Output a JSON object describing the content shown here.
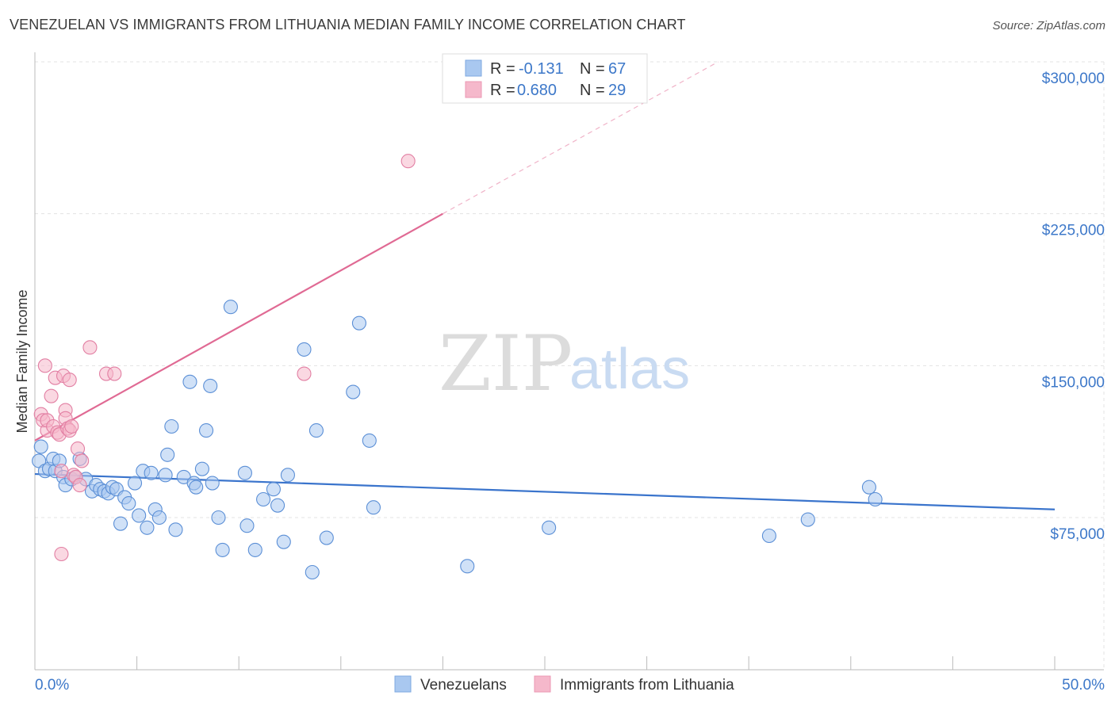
{
  "header": {
    "title": "VENEZUELAN VS IMMIGRANTS FROM LITHUANIA MEDIAN FAMILY INCOME CORRELATION CHART",
    "source": "Source: ZipAtlas.com"
  },
  "legend_top": [
    {
      "r_label": "R =",
      "r_value": "-0.131",
      "n_label": "N =",
      "n_value": "67"
    },
    {
      "r_label": "R =",
      "r_value": "0.680",
      "n_label": "N =",
      "n_value": "29"
    }
  ],
  "legend_bottom": [
    "Venezuelans",
    "Immigrants from Lithuania"
  ],
  "watermark": {
    "zip": "ZIP",
    "atlas": "atlas"
  },
  "colors": {
    "blue": "#3d78c9",
    "blue_fill": "#a9c8f0",
    "pink": "#e06a94",
    "pink_fill": "#f5b8cb"
  },
  "chart_data": {
    "type": "scatter",
    "title": "VENEZUELAN VS IMMIGRANTS FROM LITHUANIA MEDIAN FAMILY INCOME CORRELATION CHART",
    "xlabel": "",
    "ylabel": "Median Family Income",
    "xlim": [
      0,
      50
    ],
    "ylim": [
      0,
      310000
    ],
    "x_tick_labels": [
      "0.0%",
      "50.0%"
    ],
    "y_ticks": [
      75000,
      150000,
      225000,
      300000
    ],
    "y_tick_labels": [
      "$75,000",
      "$150,000",
      "$225,000",
      "$300,000"
    ],
    "series": [
      {
        "name": "Venezuelans",
        "r": -0.131,
        "n": 67,
        "trend": {
          "x0": 0,
          "y0": 96500,
          "x1": 50,
          "y1": 79000
        },
        "points": [
          [
            0.2,
            103000
          ],
          [
            0.3,
            110000
          ],
          [
            0.5,
            98000
          ],
          [
            0.7,
            99000
          ],
          [
            0.9,
            104000
          ],
          [
            1.0,
            98000
          ],
          [
            1.2,
            103000
          ],
          [
            1.4,
            95000
          ],
          [
            1.5,
            91000
          ],
          [
            1.8,
            94000
          ],
          [
            2.0,
            95000
          ],
          [
            2.2,
            104000
          ],
          [
            2.5,
            94000
          ],
          [
            2.8,
            88000
          ],
          [
            3.0,
            91000
          ],
          [
            3.2,
            89000
          ],
          [
            3.4,
            88000
          ],
          [
            3.6,
            87000
          ],
          [
            3.8,
            90000
          ],
          [
            4.0,
            89000
          ],
          [
            4.2,
            72000
          ],
          [
            4.4,
            85000
          ],
          [
            4.6,
            82000
          ],
          [
            4.9,
            92000
          ],
          [
            5.1,
            76000
          ],
          [
            5.3,
            98000
          ],
          [
            5.5,
            70000
          ],
          [
            5.7,
            97000
          ],
          [
            5.9,
            79000
          ],
          [
            6.1,
            75000
          ],
          [
            6.4,
            96000
          ],
          [
            6.5,
            106000
          ],
          [
            6.7,
            120000
          ],
          [
            6.9,
            69000
          ],
          [
            7.3,
            95000
          ],
          [
            7.6,
            142000
          ],
          [
            7.8,
            92000
          ],
          [
            7.9,
            90000
          ],
          [
            8.2,
            99000
          ],
          [
            8.4,
            118000
          ],
          [
            8.6,
            140000
          ],
          [
            8.7,
            92000
          ],
          [
            9.0,
            75000
          ],
          [
            9.2,
            59000
          ],
          [
            9.6,
            179000
          ],
          [
            10.3,
            97000
          ],
          [
            10.4,
            71000
          ],
          [
            10.8,
            59000
          ],
          [
            11.2,
            84000
          ],
          [
            11.7,
            89000
          ],
          [
            11.9,
            81000
          ],
          [
            12.2,
            63000
          ],
          [
            12.4,
            96000
          ],
          [
            13.2,
            158000
          ],
          [
            13.6,
            48000
          ],
          [
            13.8,
            118000
          ],
          [
            14.3,
            65000
          ],
          [
            15.6,
            137000
          ],
          [
            15.9,
            171000
          ],
          [
            16.4,
            113000
          ],
          [
            16.6,
            80000
          ],
          [
            21.2,
            51000
          ],
          [
            25.2,
            70000
          ],
          [
            36.0,
            66000
          ],
          [
            37.9,
            74000
          ],
          [
            40.9,
            90000
          ],
          [
            41.2,
            84000
          ]
        ]
      },
      {
        "name": "Immigrants from Lithuania",
        "r": 0.68,
        "n": 29,
        "trend": {
          "x0": 0,
          "y0": 113000,
          "x1": 20,
          "y1": 225000
        },
        "trend_dashed": {
          "x0": 20,
          "y0": 225000,
          "x1": 33.5,
          "y1": 300000
        },
        "points": [
          [
            0.3,
            126000
          ],
          [
            0.4,
            123000
          ],
          [
            0.5,
            150000
          ],
          [
            0.6,
            118000
          ],
          [
            0.6,
            123000
          ],
          [
            0.8,
            135000
          ],
          [
            0.9,
            120000
          ],
          [
            1.0,
            144000
          ],
          [
            1.1,
            117000
          ],
          [
            1.2,
            116000
          ],
          [
            1.3,
            98000
          ],
          [
            1.4,
            145000
          ],
          [
            1.5,
            128000
          ],
          [
            1.5,
            124000
          ],
          [
            1.6,
            119000
          ],
          [
            1.7,
            143000
          ],
          [
            1.7,
            118000
          ],
          [
            1.8,
            120000
          ],
          [
            1.9,
            96000
          ],
          [
            2.0,
            95000
          ],
          [
            2.1,
            109000
          ],
          [
            2.2,
            91000
          ],
          [
            2.3,
            103000
          ],
          [
            2.7,
            159000
          ],
          [
            3.5,
            146000
          ],
          [
            3.9,
            146000
          ],
          [
            13.2,
            146000
          ],
          [
            18.3,
            251000
          ],
          [
            1.3,
            57000
          ]
        ]
      }
    ]
  }
}
